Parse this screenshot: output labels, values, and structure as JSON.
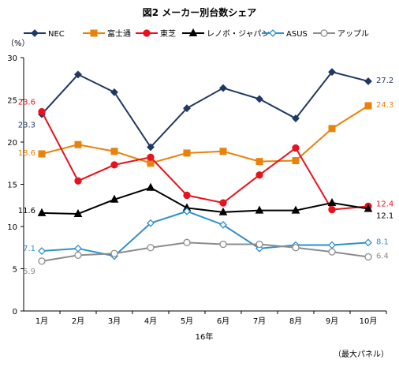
{
  "chart_data": {
    "type": "line",
    "title": "図2 メーカー別台数シェア",
    "y_unit": "（%）",
    "xlabel": "16年",
    "ylabel": "",
    "note": "（最大パネル）",
    "ylim": [
      0,
      30
    ],
    "yticks": [
      0,
      5,
      10,
      15,
      20,
      25,
      30
    ],
    "grid": false,
    "legend_position": "top",
    "categories": [
      "1月",
      "2月",
      "3月",
      "4月",
      "5月",
      "6月",
      "7月",
      "8月",
      "9月",
      "10月"
    ],
    "series": [
      {
        "name": "NEC",
        "color": "#1f3864",
        "marker": "diamond-filled",
        "values": [
          23.3,
          28.0,
          25.9,
          19.4,
          24.0,
          26.4,
          25.1,
          22.8,
          28.3,
          27.2
        ],
        "labels": {
          "first": "23.3",
          "last": "27.2"
        }
      },
      {
        "name": "富士通",
        "color": "#e8820c",
        "marker": "square",
        "values": [
          18.6,
          19.7,
          18.9,
          17.5,
          18.7,
          18.9,
          17.7,
          17.8,
          21.6,
          24.3
        ],
        "labels": {
          "first": "18.6",
          "last": "24.3"
        }
      },
      {
        "name": "東芝",
        "color": "#e8121d",
        "marker": "circle-filled",
        "values": [
          23.6,
          15.4,
          17.3,
          18.2,
          13.7,
          12.8,
          16.1,
          19.3,
          12.0,
          12.4
        ],
        "labels": {
          "first": "23.6",
          "last": "12.4"
        }
      },
      {
        "name": "レノボ・ジャパン",
        "color": "#000000",
        "marker": "triangle-filled",
        "values": [
          11.6,
          11.5,
          13.2,
          14.6,
          12.2,
          11.7,
          11.9,
          11.9,
          12.8,
          12.1
        ],
        "labels": {
          "first": "11.6",
          "last": "12.1"
        }
      },
      {
        "name": "ASUS",
        "color": "#2e8fd0",
        "marker": "diamond-open",
        "values": [
          7.1,
          7.4,
          6.5,
          10.4,
          11.8,
          10.2,
          7.4,
          7.8,
          7.8,
          8.1
        ],
        "labels": {
          "first": "7.1",
          "last": "8.1"
        }
      },
      {
        "name": "アップル",
        "color": "#8c8c8c",
        "marker": "circle-open",
        "values": [
          5.9,
          6.6,
          6.8,
          7.5,
          8.1,
          7.9,
          7.9,
          7.5,
          7.0,
          6.4
        ],
        "labels": {
          "first": "5.9",
          "last": "6.4"
        }
      }
    ]
  }
}
